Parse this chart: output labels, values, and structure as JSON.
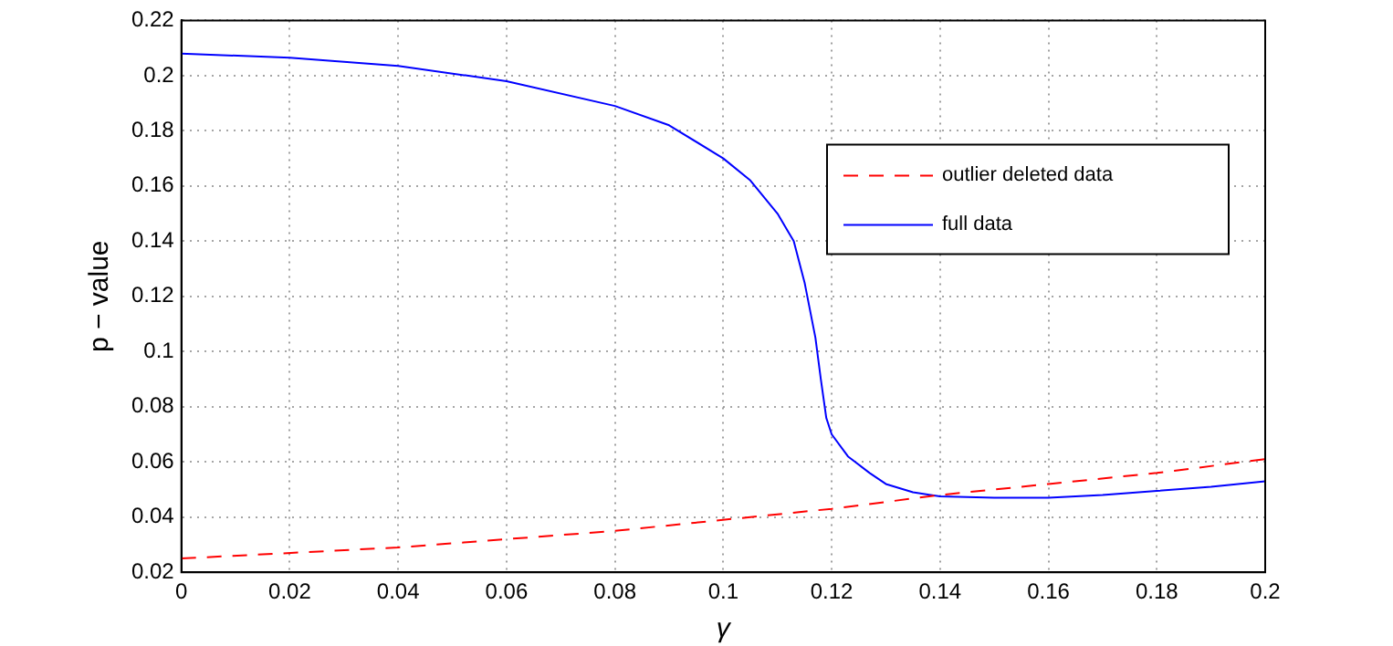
{
  "chart_data": {
    "type": "line",
    "xlabel": "γ",
    "ylabel": "p − value",
    "xlim": [
      0,
      0.2
    ],
    "xticks": [
      0,
      0.02,
      0.04,
      0.06,
      0.08,
      0.1,
      0.12,
      0.14,
      0.16,
      0.18,
      0.2
    ],
    "ylim": [
      0.02,
      0.22
    ],
    "yticks": [
      0.02,
      0.04,
      0.06,
      0.08,
      0.1,
      0.12,
      0.14,
      0.16,
      0.18,
      0.2,
      0.22
    ],
    "grid": true,
    "legend": "top right",
    "marker": "none",
    "series": [
      {
        "name": "outlier deleted data",
        "color": "#ff0000",
        "line_style": "dashed",
        "x": [
          0,
          0.04,
          0.08,
          0.12,
          0.14,
          0.16,
          0.18,
          0.2
        ],
        "values": [
          0.025,
          0.029,
          0.035,
          0.043,
          0.048,
          0.052,
          0.056,
          0.061
        ]
      },
      {
        "name": "full data",
        "color": "#0000ff",
        "line_style": "solid",
        "x": [
          0,
          0.02,
          0.04,
          0.06,
          0.08,
          0.09,
          0.1,
          0.105,
          0.11,
          0.113,
          0.115,
          0.117,
          0.118,
          0.119,
          0.12,
          0.123,
          0.127,
          0.13,
          0.135,
          0.14,
          0.15,
          0.16,
          0.17,
          0.18,
          0.19,
          0.2
        ],
        "values": [
          0.208,
          0.2065,
          0.2035,
          0.198,
          0.189,
          0.182,
          0.17,
          0.162,
          0.15,
          0.14,
          0.125,
          0.105,
          0.09,
          0.076,
          0.07,
          0.062,
          0.056,
          0.052,
          0.049,
          0.0475,
          0.047,
          0.047,
          0.048,
          0.0495,
          0.051,
          0.053
        ]
      }
    ]
  }
}
